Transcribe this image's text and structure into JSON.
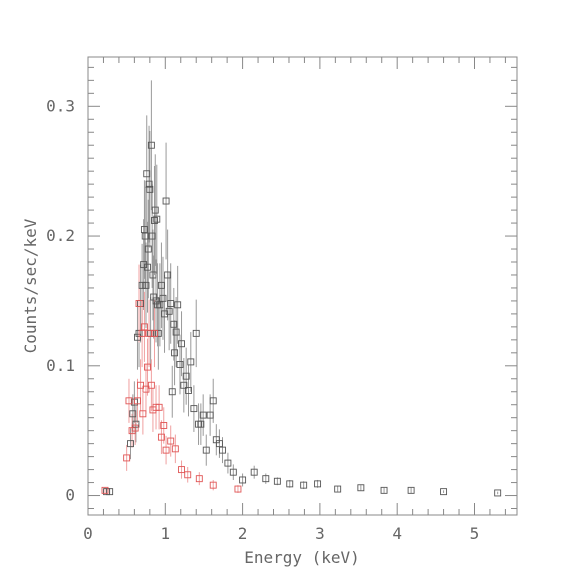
{
  "chart_data": {
    "type": "scatter",
    "xlabel": "Energy (keV)",
    "ylabel": "Counts/sec/keV",
    "xlim": [
      0,
      5.55
    ],
    "ylim": [
      -0.015,
      0.338
    ],
    "x_ticks": [
      0,
      1,
      2,
      3,
      4,
      5
    ],
    "x_tick_labels": [
      "0",
      "1",
      "2",
      "3",
      "4",
      "5"
    ],
    "y_ticks": [
      0,
      0.1,
      0.2,
      0.3
    ],
    "y_tick_labels": [
      "0",
      "0.1",
      "0.2",
      "0.3"
    ],
    "grid": false,
    "legend": "none",
    "colors": {
      "series_dark": "#555555",
      "series_red": "#e05555",
      "errorbar_dark": "#999999",
      "errorbar_red": "#f0a0a0",
      "axis": "#888888"
    },
    "series": [
      {
        "color": "#555555",
        "marker": "open-square",
        "points": [
          [
            0.24,
            0.003,
            0.002
          ],
          [
            0.28,
            0.003,
            0.002
          ],
          [
            0.55,
            0.04,
            0.012
          ],
          [
            0.58,
            0.063,
            0.015
          ],
          [
            0.6,
            0.072,
            0.016
          ],
          [
            0.62,
            0.055,
            0.014
          ],
          [
            0.64,
            0.122,
            0.025
          ],
          [
            0.66,
            0.125,
            0.026
          ],
          [
            0.68,
            0.148,
            0.03
          ],
          [
            0.7,
            0.162,
            0.032
          ],
          [
            0.72,
            0.178,
            0.035
          ],
          [
            0.73,
            0.205,
            0.038
          ],
          [
            0.74,
            0.2,
            0.038
          ],
          [
            0.75,
            0.162,
            0.033
          ],
          [
            0.76,
            0.248,
            0.045
          ],
          [
            0.77,
            0.176,
            0.035
          ],
          [
            0.78,
            0.19,
            0.038
          ],
          [
            0.79,
            0.24,
            0.045
          ],
          [
            0.8,
            0.236,
            0.045
          ],
          [
            0.81,
            0.125,
            0.028
          ],
          [
            0.82,
            0.27,
            0.05
          ],
          [
            0.83,
            0.2,
            0.04
          ],
          [
            0.84,
            0.17,
            0.035
          ],
          [
            0.85,
            0.153,
            0.032
          ],
          [
            0.86,
            0.212,
            0.042
          ],
          [
            0.87,
            0.22,
            0.043
          ],
          [
            0.88,
            0.15,
            0.032
          ],
          [
            0.89,
            0.213,
            0.042
          ],
          [
            0.9,
            0.147,
            0.032
          ],
          [
            0.91,
            0.125,
            0.028
          ],
          [
            0.93,
            0.147,
            0.032
          ],
          [
            0.95,
            0.162,
            0.033
          ],
          [
            0.97,
            0.152,
            0.032
          ],
          [
            0.99,
            0.14,
            0.03
          ],
          [
            1.01,
            0.227,
            0.045
          ],
          [
            1.03,
            0.17,
            0.035
          ],
          [
            1.05,
            0.142,
            0.03
          ],
          [
            1.07,
            0.148,
            0.031
          ],
          [
            1.09,
            0.08,
            0.02
          ],
          [
            1.11,
            0.132,
            0.028
          ],
          [
            1.12,
            0.11,
            0.025
          ],
          [
            1.14,
            0.126,
            0.027
          ],
          [
            1.16,
            0.147,
            0.03
          ],
          [
            1.19,
            0.101,
            0.023
          ],
          [
            1.21,
            0.117,
            0.025
          ],
          [
            1.24,
            0.085,
            0.021
          ],
          [
            1.27,
            0.092,
            0.022
          ],
          [
            1.3,
            0.081,
            0.02
          ],
          [
            1.33,
            0.103,
            0.023
          ],
          [
            1.37,
            0.067,
            0.018
          ],
          [
            1.4,
            0.125,
            0.026
          ],
          [
            1.43,
            0.055,
            0.016
          ],
          [
            1.46,
            0.055,
            0.016
          ],
          [
            1.49,
            0.062,
            0.016
          ],
          [
            1.53,
            0.035,
            0.012
          ],
          [
            1.58,
            0.062,
            0.016
          ],
          [
            1.62,
            0.073,
            0.017
          ],
          [
            1.66,
            0.043,
            0.012
          ],
          [
            1.7,
            0.04,
            0.011
          ],
          [
            1.74,
            0.035,
            0.01
          ],
          [
            1.81,
            0.025,
            0.008
          ],
          [
            1.88,
            0.018,
            0.006
          ],
          [
            2.0,
            0.012,
            0.005
          ],
          [
            2.15,
            0.018,
            0.005
          ],
          [
            2.3,
            0.013,
            0.004
          ],
          [
            2.45,
            0.011,
            0.003
          ],
          [
            2.61,
            0.009,
            0.003
          ],
          [
            2.79,
            0.008,
            0.003
          ],
          [
            2.97,
            0.009,
            0.003
          ],
          [
            3.23,
            0.005,
            0.002
          ],
          [
            3.53,
            0.006,
            0.002
          ],
          [
            3.83,
            0.004,
            0.002
          ],
          [
            4.18,
            0.004,
            0.002
          ],
          [
            4.6,
            0.003,
            0.001
          ],
          [
            5.3,
            0.002,
            0.001
          ]
        ]
      },
      {
        "color": "#e05555",
        "marker": "open-square",
        "points": [
          [
            0.22,
            0.004,
            0.002
          ],
          [
            0.5,
            0.029,
            0.01
          ],
          [
            0.53,
            0.073,
            0.017
          ],
          [
            0.57,
            0.05,
            0.013
          ],
          [
            0.61,
            0.052,
            0.013
          ],
          [
            0.64,
            0.073,
            0.017
          ],
          [
            0.66,
            0.148,
            0.03
          ],
          [
            0.68,
            0.085,
            0.02
          ],
          [
            0.7,
            0.125,
            0.026
          ],
          [
            0.71,
            0.063,
            0.016
          ],
          [
            0.73,
            0.13,
            0.027
          ],
          [
            0.75,
            0.082,
            0.019
          ],
          [
            0.77,
            0.099,
            0.022
          ],
          [
            0.79,
            0.125,
            0.026
          ],
          [
            0.82,
            0.085,
            0.02
          ],
          [
            0.84,
            0.066,
            0.017
          ],
          [
            0.86,
            0.125,
            0.026
          ],
          [
            0.88,
            0.068,
            0.017
          ],
          [
            0.92,
            0.068,
            0.017
          ],
          [
            0.95,
            0.045,
            0.013
          ],
          [
            0.98,
            0.054,
            0.014
          ],
          [
            1.01,
            0.035,
            0.011
          ],
          [
            1.07,
            0.042,
            0.012
          ],
          [
            1.13,
            0.036,
            0.011
          ],
          [
            1.21,
            0.02,
            0.007
          ],
          [
            1.29,
            0.016,
            0.006
          ],
          [
            1.44,
            0.013,
            0.005
          ],
          [
            1.62,
            0.008,
            0.004
          ],
          [
            1.94,
            0.005,
            0.003
          ]
        ]
      }
    ]
  }
}
